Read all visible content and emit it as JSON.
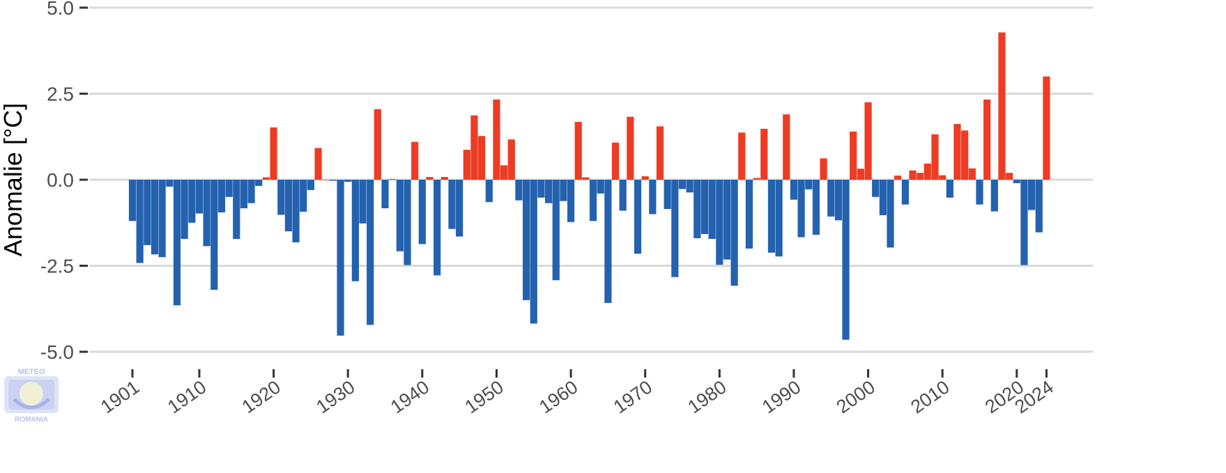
{
  "chart_data": {
    "type": "bar",
    "title": "",
    "xlabel": "",
    "ylabel": "Anomalie [°C]",
    "ylim": [
      -5.0,
      5.0
    ],
    "yticks": [
      "5.0",
      "2.5",
      "0.0",
      "-2.5",
      "-5.0"
    ],
    "ytick_values": [
      5.0,
      2.5,
      0.0,
      -2.5,
      -5.0
    ],
    "xticks": [
      1901,
      1910,
      1920,
      1930,
      1940,
      1950,
      1960,
      1970,
      1980,
      1990,
      2000,
      2010,
      2020,
      2024
    ],
    "grid": "horizontal",
    "colors": {
      "positive": "#ee3b24",
      "negative": "#2462b0",
      "grid": "#d9d9d9"
    },
    "x_start": 1901,
    "values": [
      -1.2,
      -2.42,
      -1.9,
      -2.17,
      -2.25,
      -0.2,
      -3.65,
      -1.72,
      -1.25,
      -0.98,
      -1.93,
      -3.2,
      -0.95,
      -0.5,
      -1.72,
      -0.83,
      -0.68,
      -0.18,
      0.07,
      1.52,
      -1.02,
      -1.5,
      -1.82,
      -0.93,
      -0.3,
      0.92,
      0.0,
      -0.03,
      -4.53,
      -0.06,
      -2.95,
      -1.27,
      -4.22,
      2.05,
      -0.83,
      0.02,
      -2.08,
      -2.48,
      1.1,
      -1.87,
      0.08,
      -2.78,
      0.08,
      -1.43,
      -1.65,
      0.87,
      1.87,
      1.27,
      -0.65,
      2.33,
      0.42,
      1.17,
      -0.6,
      -3.5,
      -4.18,
      -0.52,
      -0.68,
      -2.92,
      -0.62,
      -1.23,
      1.68,
      0.07,
      -1.2,
      -0.4,
      -3.58,
      1.08,
      -0.9,
      1.83,
      -2.15,
      0.1,
      -1.0,
      1.55,
      -0.85,
      -2.83,
      -0.27,
      -0.37,
      -1.7,
      -1.58,
      -1.72,
      -2.47,
      -2.32,
      -3.08,
      1.37,
      -2.0,
      0.05,
      1.48,
      -2.12,
      -2.23,
      1.9,
      -0.58,
      -1.67,
      -0.28,
      -1.6,
      0.62,
      -1.07,
      -1.18,
      -4.65,
      1.4,
      0.32,
      2.25,
      -0.5,
      -1.03,
      -1.97,
      0.12,
      -0.72,
      0.27,
      0.2,
      0.47,
      1.32,
      0.13,
      -0.52,
      1.62,
      1.43,
      0.33,
      -0.72,
      2.33,
      -0.92,
      4.28,
      0.2,
      -0.1,
      -2.48,
      -0.88,
      -1.53,
      3.0
    ]
  },
  "logo": {
    "top_text": "METEO",
    "bottom_text": "ROMANIA"
  }
}
